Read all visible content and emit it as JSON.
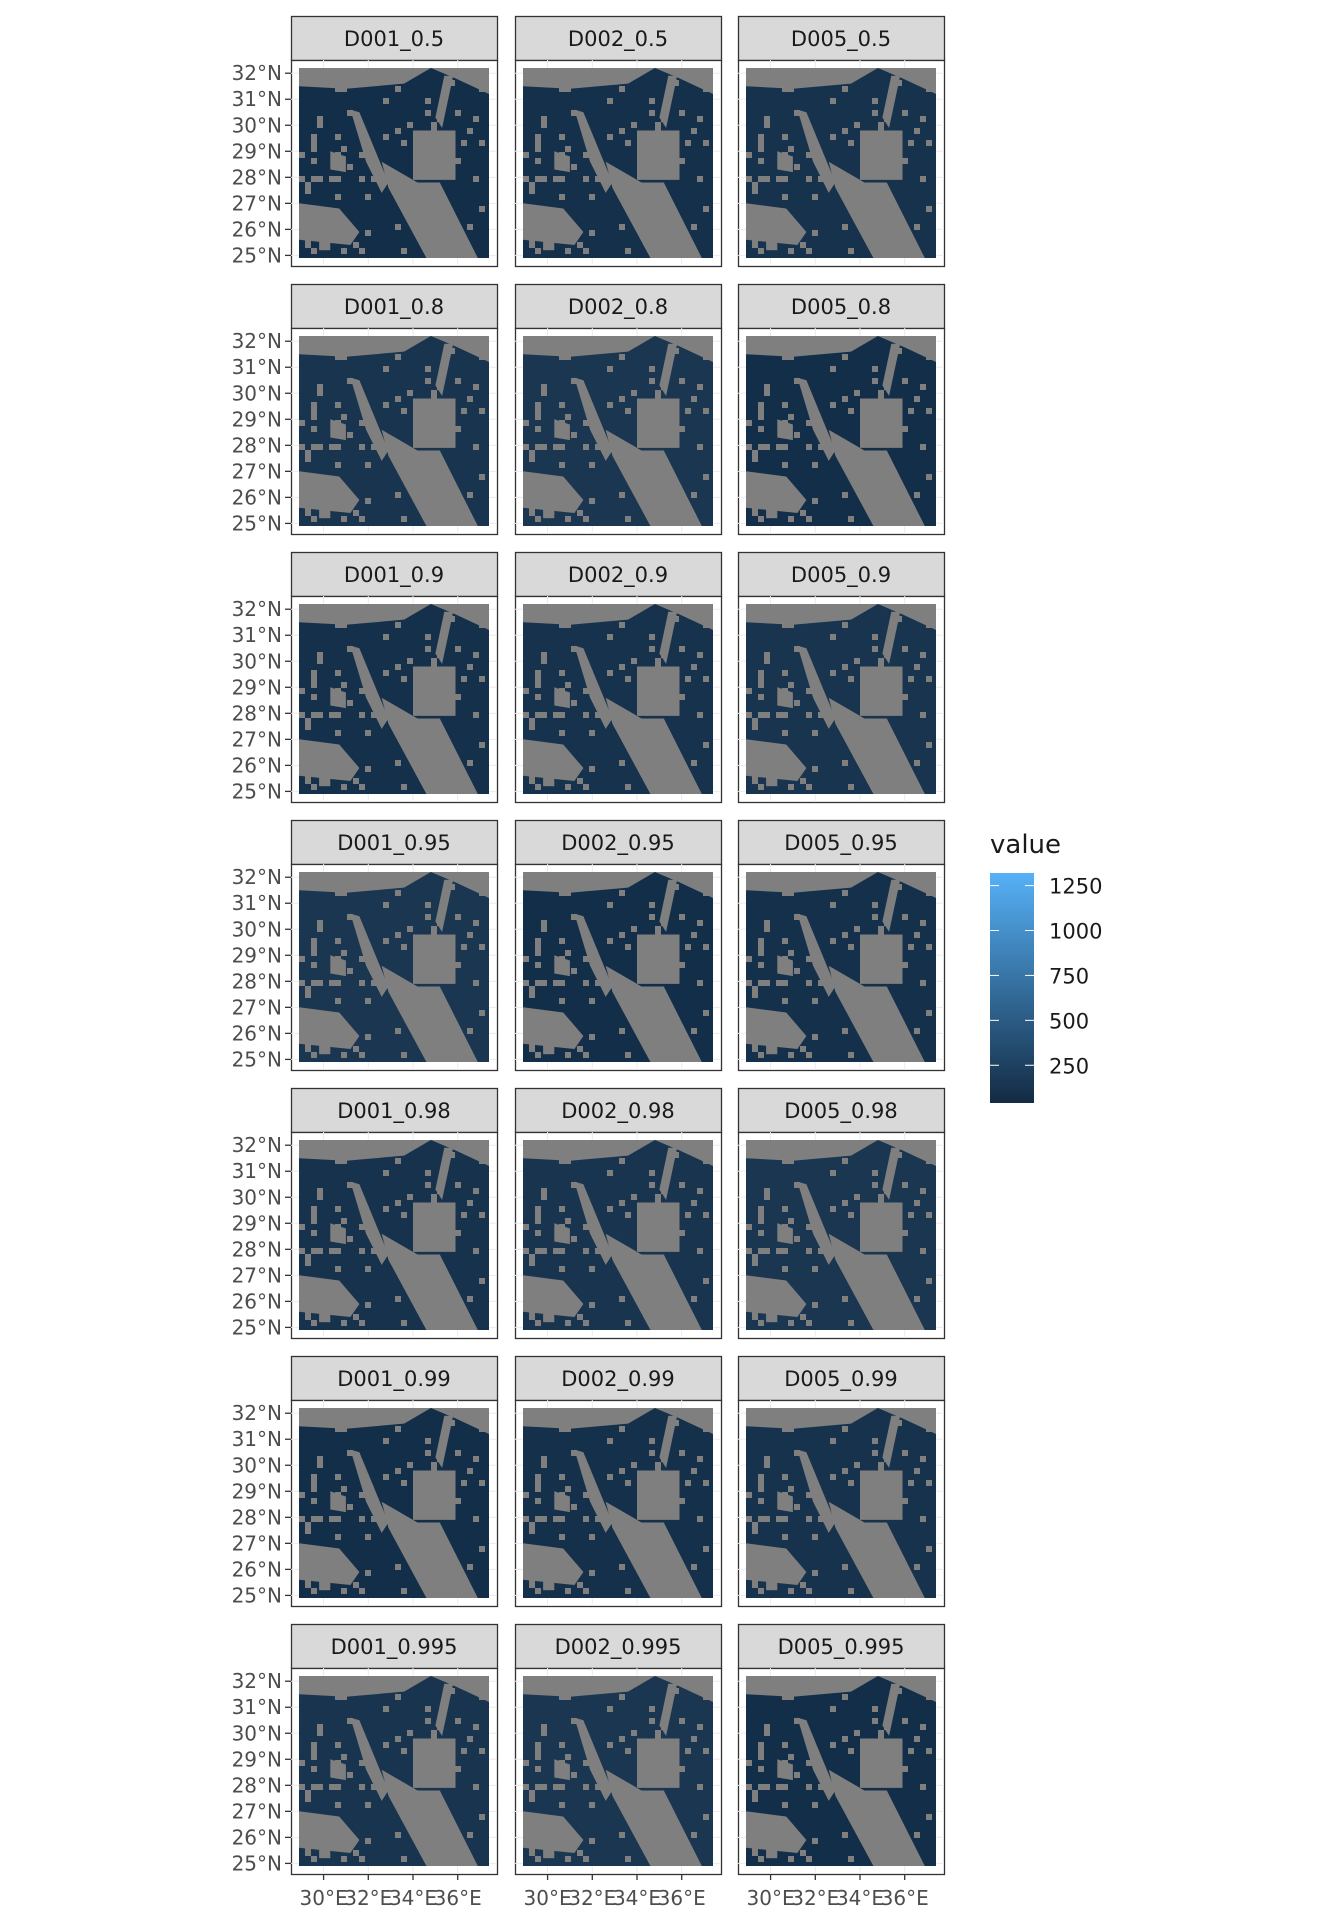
{
  "chart_data": {
    "type": "heatmap",
    "subtype": "faceted raster map",
    "facet_rows": [
      "0.5",
      "0.8",
      "0.9",
      "0.95",
      "0.98",
      "0.99",
      "0.995"
    ],
    "facet_cols": [
      "D001",
      "D002",
      "D005"
    ],
    "facets": [
      "D001_0.5",
      "D002_0.5",
      "D005_0.5",
      "D001_0.8",
      "D002_0.8",
      "D005_0.8",
      "D001_0.9",
      "D002_0.9",
      "D005_0.9",
      "D001_0.95",
      "D002_0.95",
      "D005_0.95",
      "D001_0.98",
      "D002_0.98",
      "D005_0.98",
      "D001_0.99",
      "D002_0.99",
      "D005_0.99",
      "D001_0.995",
      "D002_0.995",
      "D005_0.995"
    ],
    "x_ticks": [
      "30°E",
      "32°E",
      "34°E",
      "36°E"
    ],
    "x_tick_values": [
      30,
      32,
      34,
      36
    ],
    "y_ticks": [
      "32°N",
      "31°N",
      "30°N",
      "29°N",
      "28°N",
      "27°N",
      "26°N",
      "25°N"
    ],
    "y_tick_values": [
      32,
      31,
      30,
      29,
      28,
      27,
      26,
      25
    ],
    "xlim": [
      28.9,
      37.4
    ],
    "ylim": [
      24.9,
      32.2
    ],
    "legend": {
      "title": "value",
      "labels": [
        "1250",
        "1000",
        "750",
        "500",
        "250"
      ],
      "breaks": [
        1250,
        1000,
        750,
        500,
        250
      ],
      "range": [
        40,
        1320
      ],
      "colors": {
        "low": "#132b43",
        "high": "#56b1f7"
      },
      "position": "right"
    },
    "na_color": "#7f7f7f",
    "grid": true,
    "strip_fill": "#d9d9d9",
    "panel_border": "#333333"
  }
}
